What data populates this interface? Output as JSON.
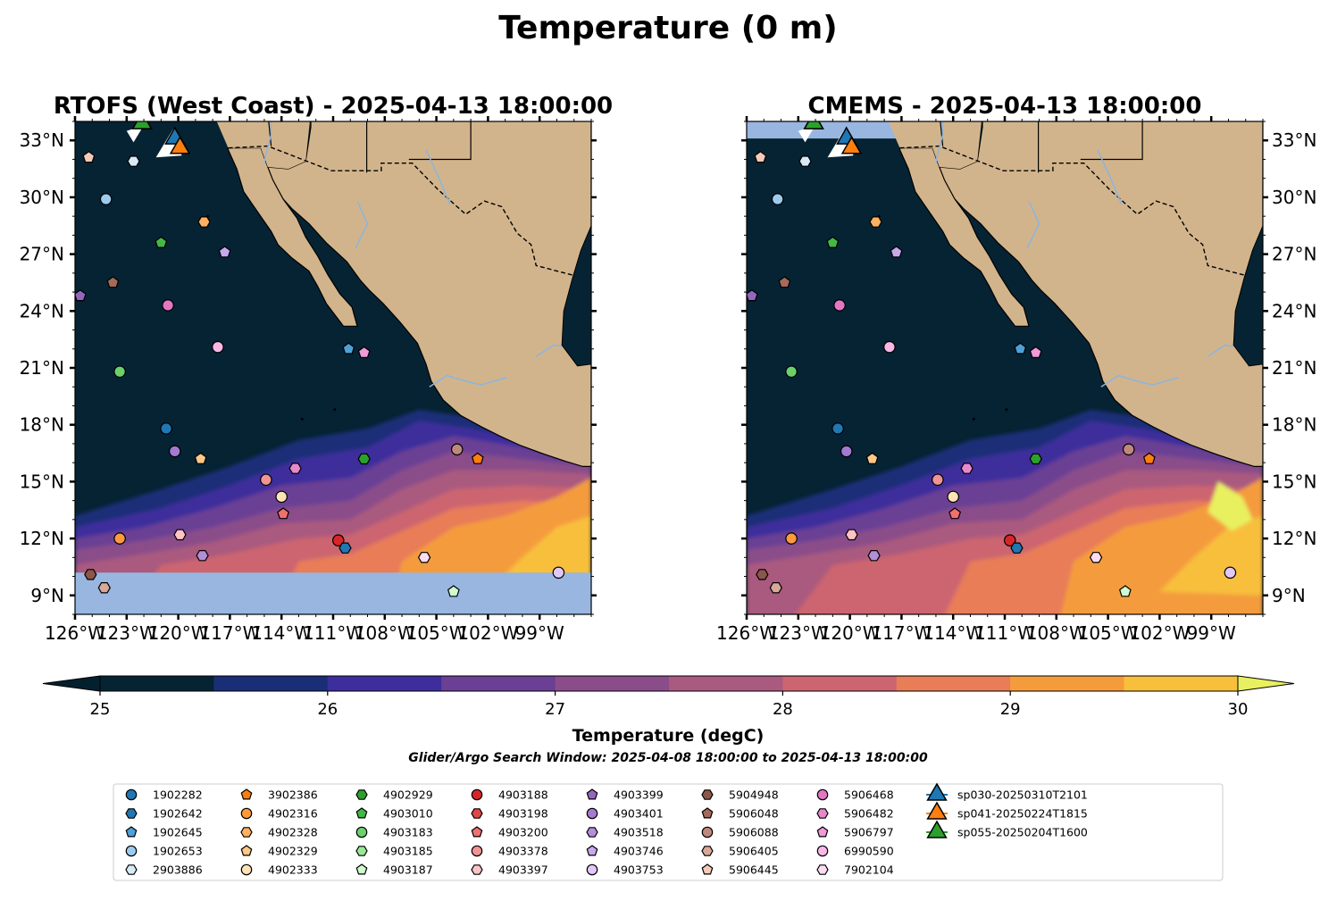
{
  "title": "Temperature (0 m)",
  "panels": [
    {
      "title": "RTOFS (West Coast) - 2025-04-13 18:00:00"
    },
    {
      "title": "CMEMS - 2025-04-13 18:00:00"
    }
  ],
  "map": {
    "lon_range": [
      -126,
      -96
    ],
    "lat_range": [
      8,
      34
    ],
    "lat_ticks": [
      "33°N",
      "30°N",
      "27°N",
      "24°N",
      "21°N",
      "18°N",
      "15°N",
      "12°N",
      "9°N"
    ],
    "lat_values": [
      33,
      30,
      27,
      24,
      21,
      18,
      15,
      12,
      9
    ],
    "lon_ticks": [
      "126°W",
      "123°W",
      "120°W",
      "117°W",
      "114°W",
      "111°W",
      "108°W",
      "105°W",
      "102°W",
      "99°W"
    ],
    "lon_values": [
      -126,
      -123,
      -120,
      -117,
      -114,
      -111,
      -108,
      -105,
      -102,
      -99
    ],
    "colors": {
      "ocean_cold": "#052333",
      "land": "#d2b48c",
      "nodata": "#98b6e0",
      "river": "#8cb4e0"
    }
  },
  "colorbar": {
    "label": "Temperature (degC)",
    "ticks": [
      "25",
      "26",
      "27",
      "28",
      "29",
      "30"
    ],
    "tick_values": [
      25,
      26,
      27,
      28,
      29,
      30
    ],
    "extend": "both",
    "colors": [
      "#052333",
      "#1a2e78",
      "#3e2d9c",
      "#6a3f94",
      "#8a4d8a",
      "#aa5a7e",
      "#cc6570",
      "#e87d58",
      "#f49c3c",
      "#f8bf3c"
    ],
    "under_color": "#03202e",
    "over_color": "#e8f060"
  },
  "search_window": "Glider/Argo Search Window: 2025-04-08 18:00:00 to 2025-04-13 18:00:00",
  "legend": [
    {
      "label": "1902282",
      "marker": "circle",
      "color": "#1f77b4"
    },
    {
      "label": "1902642",
      "marker": "hexagon",
      "color": "#1f77b4"
    },
    {
      "label": "1902645",
      "marker": "pentagon",
      "color": "#4ea0d8"
    },
    {
      "label": "1902653",
      "marker": "circle",
      "color": "#9ccbee"
    },
    {
      "label": "2903886",
      "marker": "hexagon",
      "color": "#d6eaf8"
    },
    {
      "label": "3902386",
      "marker": "pentagon",
      "color": "#ff7f0e"
    },
    {
      "label": "4902316",
      "marker": "circle",
      "color": "#ff9a3c"
    },
    {
      "label": "4902328",
      "marker": "hexagon",
      "color": "#ffb060"
    },
    {
      "label": "4902329",
      "marker": "pentagon",
      "color": "#ffc888"
    },
    {
      "label": "4902333",
      "marker": "circle",
      "color": "#ffe2b6"
    },
    {
      "label": "4902929",
      "marker": "hexagon",
      "color": "#2ca02c"
    },
    {
      "label": "4903010",
      "marker": "pentagon",
      "color": "#44b844"
    },
    {
      "label": "4903183",
      "marker": "circle",
      "color": "#6cd06c"
    },
    {
      "label": "4903185",
      "marker": "hexagon",
      "color": "#98e898"
    },
    {
      "label": "4903187",
      "marker": "pentagon",
      "color": "#cffccf"
    },
    {
      "label": "4903188",
      "marker": "circle",
      "color": "#d62728"
    },
    {
      "label": "4903198",
      "marker": "hexagon",
      "color": "#e04848"
    },
    {
      "label": "4903200",
      "marker": "pentagon",
      "color": "#f07070"
    },
    {
      "label": "4903378",
      "marker": "circle",
      "color": "#f09494"
    },
    {
      "label": "4903397",
      "marker": "hexagon",
      "color": "#fcc4c4"
    },
    {
      "label": "4903399",
      "marker": "pentagon",
      "color": "#9467bd"
    },
    {
      "label": "4903401",
      "marker": "circle",
      "color": "#a47ad0"
    },
    {
      "label": "4903518",
      "marker": "hexagon",
      "color": "#b48ed8"
    },
    {
      "label": "4903746",
      "marker": "pentagon",
      "color": "#c8a8ec"
    },
    {
      "label": "4903753",
      "marker": "circle",
      "color": "#e0c8f8"
    },
    {
      "label": "5904948",
      "marker": "hexagon",
      "color": "#8c564b"
    },
    {
      "label": "5906048",
      "marker": "pentagon",
      "color": "#a46a5c"
    },
    {
      "label": "5906088",
      "marker": "circle",
      "color": "#c0887c"
    },
    {
      "label": "5906405",
      "marker": "hexagon",
      "color": "#d8a898"
    },
    {
      "label": "5906445",
      "marker": "pentagon",
      "color": "#f4cab8"
    },
    {
      "label": "5906468",
      "marker": "circle",
      "color": "#e377c2"
    },
    {
      "label": "5906482",
      "marker": "hexagon",
      "color": "#e888cc"
    },
    {
      "label": "5906797",
      "marker": "pentagon",
      "color": "#f09ad6"
    },
    {
      "label": "6990590",
      "marker": "circle",
      "color": "#f8b8e4"
    },
    {
      "label": "7902104",
      "marker": "hexagon",
      "color": "#fcdcf2"
    },
    {
      "label": "sp030-20250310T2101",
      "marker": "triangle",
      "color": "#1f77b4"
    },
    {
      "label": "sp041-20250224T1815",
      "marker": "triangle",
      "color": "#ff7f0e"
    },
    {
      "label": "sp055-20250204T1600",
      "marker": "triangle",
      "color": "#2ca02c"
    }
  ],
  "floats": [
    {
      "id": "5906445",
      "lon": -125.2,
      "lat": 32.1
    },
    {
      "id": "2903886",
      "lon": -122.6,
      "lat": 31.9
    },
    {
      "id": "1902653",
      "lon": -124.2,
      "lat": 29.9
    },
    {
      "id": "4902328",
      "lon": -118.5,
      "lat": 28.7
    },
    {
      "id": "4903010",
      "lon": -121.0,
      "lat": 27.6
    },
    {
      "id": "4903746",
      "lon": -117.3,
      "lat": 27.1
    },
    {
      "id": "5906048",
      "lon": -123.8,
      "lat": 25.5
    },
    {
      "id": "4903399",
      "lon": -125.7,
      "lat": 24.8
    },
    {
      "id": "5906468",
      "lon": -120.6,
      "lat": 24.3
    },
    {
      "id": "6990590",
      "lon": -117.7,
      "lat": 22.1
    },
    {
      "id": "1902645",
      "lon": -110.1,
      "lat": 22.0
    },
    {
      "id": "5906797",
      "lon": -109.2,
      "lat": 21.8
    },
    {
      "id": "4903183",
      "lon": -123.4,
      "lat": 20.8
    },
    {
      "id": "1902282",
      "lon": -120.7,
      "lat": 17.8
    },
    {
      "id": "4903401",
      "lon": -120.2,
      "lat": 16.6
    },
    {
      "id": "4902329",
      "lon": -118.7,
      "lat": 16.2
    },
    {
      "id": "4902929",
      "lon": -109.2,
      "lat": 16.2
    },
    {
      "id": "5906088",
      "lon": -103.8,
      "lat": 16.7
    },
    {
      "id": "3902386",
      "lon": -102.6,
      "lat": 16.2
    },
    {
      "id": "5906482",
      "lon": -113.2,
      "lat": 15.7
    },
    {
      "id": "4903378",
      "lon": -114.9,
      "lat": 15.1
    },
    {
      "id": "4902333",
      "lon": -114.0,
      "lat": 14.2
    },
    {
      "id": "4903200",
      "lon": -113.9,
      "lat": 13.3
    },
    {
      "id": "4902316",
      "lon": -123.4,
      "lat": 12.0
    },
    {
      "id": "4903397",
      "lon": -119.9,
      "lat": 12.2
    },
    {
      "id": "4903188",
      "lon": -110.7,
      "lat": 11.9
    },
    {
      "id": "1902642",
      "lon": -110.3,
      "lat": 11.5
    },
    {
      "id": "4903518",
      "lon": -118.6,
      "lat": 11.1
    },
    {
      "id": "7902104",
      "lon": -105.7,
      "lat": 11.0
    },
    {
      "id": "5904948",
      "lon": -125.1,
      "lat": 10.1
    },
    {
      "id": "5906405",
      "lon": -124.3,
      "lat": 9.4
    },
    {
      "id": "4903187",
      "lon": -104.0,
      "lat": 9.2
    },
    {
      "id": "4903753",
      "lon": -97.9,
      "lat": 10.2
    }
  ],
  "gliders": [
    {
      "id": "sp055-20250204T1600",
      "lon": -122.1,
      "lat": 33.9
    },
    {
      "id": "sp030-20250310T2101",
      "lon": -120.2,
      "lat": 33.1
    },
    {
      "id": "sp041-20250224T1815",
      "lon": -119.9,
      "lat": 32.6
    }
  ]
}
